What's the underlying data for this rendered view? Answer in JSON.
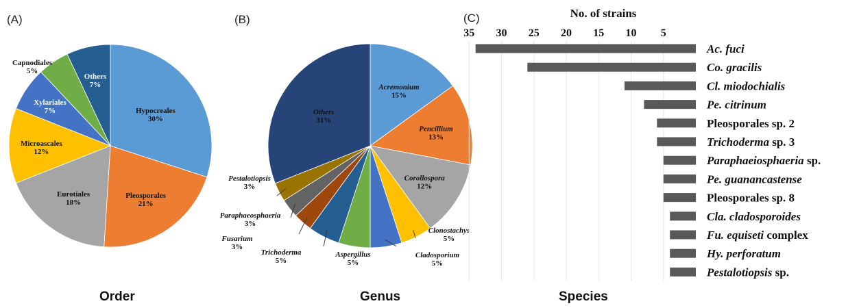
{
  "panels": {
    "a_label": "(A)",
    "b_label": "(B)",
    "c_label": "(C)",
    "a_footer": "Order",
    "b_footer": "Genus",
    "c_footer": "Species"
  },
  "chart_data": [
    {
      "type": "pie",
      "title": "",
      "categories": [
        "Hypocreales",
        "Pleosporales",
        "Eurotiales",
        "Microascales",
        "Xylariales",
        "Capnodiales",
        "Others"
      ],
      "values": [
        30,
        21,
        18,
        12,
        7,
        5,
        7
      ],
      "labels": [
        "30%",
        "21%",
        "18%",
        "12%",
        "7%",
        "5%",
        "7%"
      ],
      "colors": [
        "#5b9bd5",
        "#ed7d31",
        "#a5a5a5",
        "#ffc000",
        "#4472c4",
        "#70ad47",
        "#255e91"
      ],
      "label_colors": [
        "#111111",
        "#111111",
        "#111111",
        "#111111",
        "#ffffff",
        "#111111",
        "#ffffff"
      ],
      "italic": false
    },
    {
      "type": "pie",
      "title": "",
      "categories": [
        "Acremonium",
        "Pencillium",
        "Corollospora",
        "Clonostachys",
        "Cladosporium",
        "Aspergillus",
        "Trichoderma",
        "Fusarium",
        "Paraphaeosphaeria",
        "Pestalotiopsis",
        "Others"
      ],
      "values": [
        15,
        13,
        12,
        5,
        5,
        5,
        5,
        3,
        3,
        3,
        31
      ],
      "labels": [
        "15%",
        "13%",
        "12%",
        "5%",
        "5%",
        "5%",
        "5%",
        "3%",
        "3%",
        "3%",
        "31%"
      ],
      "colors": [
        "#5b9bd5",
        "#ed7d31",
        "#a5a5a5",
        "#ffc000",
        "#4472c4",
        "#70ad47",
        "#255e91",
        "#9e480e",
        "#636363",
        "#997300",
        "#264478"
      ],
      "italic": true
    },
    {
      "type": "bar",
      "orientation": "horizontal",
      "title": "",
      "xlabel": "No. of strains",
      "ylabel": "",
      "x_inverted": true,
      "xlim": [
        0,
        35
      ],
      "xticks": [
        35,
        30,
        25,
        20,
        15,
        10,
        5
      ],
      "categories": [
        [
          {
            "t": "Ac. fuci",
            "i": true
          }
        ],
        [
          {
            "t": "Co. gracilis",
            "i": true
          }
        ],
        [
          {
            "t": "Cl. miodochialis",
            "i": true
          }
        ],
        [
          {
            "t": "Pe. citrinum",
            "i": true
          }
        ],
        [
          {
            "t": "Pleosporales sp. 2",
            "i": false
          }
        ],
        [
          {
            "t": "Trichoderma",
            "i": true
          },
          {
            "t": " sp. 3",
            "i": false
          }
        ],
        [
          {
            "t": "Paraphaeiosphaeria",
            "i": true
          },
          {
            "t": " sp.",
            "i": false
          }
        ],
        [
          {
            "t": "Pe. guanancastense",
            "i": true
          }
        ],
        [
          {
            "t": "Pleosporales sp. 8",
            "i": false
          }
        ],
        [
          {
            "t": "Cla. cladosporoides",
            "i": true
          }
        ],
        [
          {
            "t": "Fu. equiseti",
            "i": true
          },
          {
            "t": " complex",
            "i": false
          }
        ],
        [
          {
            "t": "Hy. perforatum",
            "i": true
          }
        ],
        [
          {
            "t": "Pestalotiopsis",
            "i": true
          },
          {
            "t": " sp.",
            "i": false
          }
        ]
      ],
      "values": [
        34,
        26,
        11,
        8,
        6,
        6,
        5,
        5,
        5,
        4,
        4,
        4,
        4
      ],
      "bar_color": "#595959"
    }
  ]
}
